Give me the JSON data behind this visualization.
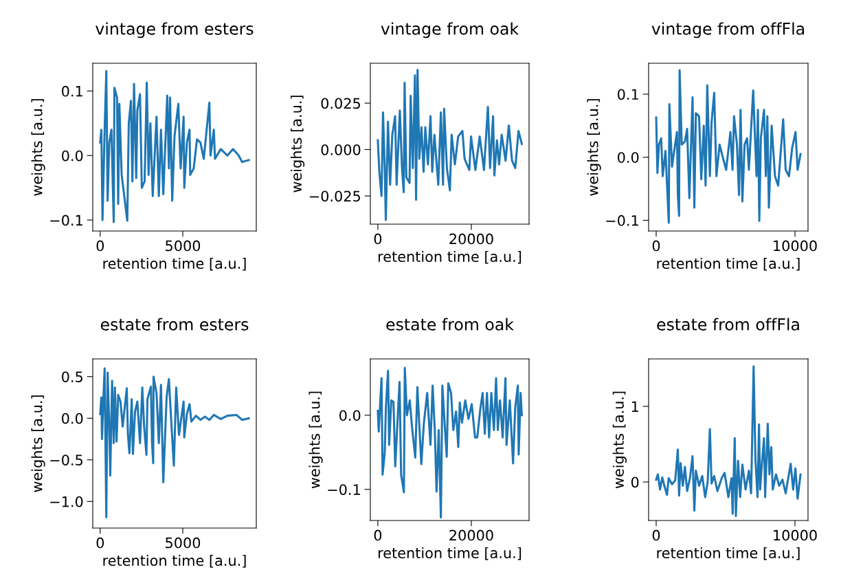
{
  "chart_data": [
    {
      "type": "line",
      "title": "vintage from esters",
      "xlabel": "retention time [a.u.]",
      "ylabel": "weights [a.u.]",
      "color": "#1f77b4",
      "xlim": [
        -450,
        9450
      ],
      "ylim": [
        -0.117,
        0.143
      ],
      "xticks": [
        0,
        5000
      ],
      "yticks": [
        {
          "value": -0.1,
          "label": "−0.1"
        },
        {
          "value": 0.0,
          "label": "0.0"
        },
        {
          "value": 0.1,
          "label": "0.1"
        }
      ],
      "x": [
        0,
        70,
        140,
        270,
        370,
        450,
        550,
        680,
        820,
        860,
        1020,
        1090,
        1160,
        1300,
        1640,
        1730,
        1860,
        1950,
        2050,
        2180,
        2250,
        2410,
        2520,
        2690,
        2820,
        2930,
        3040,
        3180,
        3410,
        3550,
        3680,
        3820,
        4060,
        4160,
        4230,
        4360,
        4500,
        4730,
        4870,
        5050,
        5090,
        5250,
        5410,
        5450,
        5660,
        5860,
        6070,
        6270,
        6610,
        6680,
        6880,
        6950,
        7300,
        7700,
        8040,
        8390,
        8590,
        9000
      ],
      "values": [
        0.02,
        0.04,
        -0.1,
        0.04,
        0.131,
        -0.07,
        0.02,
        0.04,
        -0.103,
        0.105,
        0.09,
        -0.075,
        0.08,
        -0.03,
        -0.101,
        0.05,
        0.085,
        -0.04,
        0.111,
        -0.035,
        0.07,
        0.095,
        -0.05,
        -0.04,
        0.113,
        -0.03,
        0.05,
        -0.063,
        0.06,
        -0.063,
        0.04,
        -0.06,
        0.093,
        -0.02,
        0.09,
        -0.07,
        0.03,
        0.08,
        -0.02,
        0.06,
        -0.05,
        0.02,
        0.04,
        -0.03,
        -0.02,
        0.025,
        0.02,
        -0.005,
        0.082,
        0.0,
        0.04,
        -0.005,
        0.01,
        0.0,
        0.01,
        0.0,
        -0.01,
        -0.007
      ]
    },
    {
      "type": "line",
      "title": "vintage from oak",
      "xlabel": "retention time [a.u.]",
      "ylabel": "weights [a.u.]",
      "color": "#1f77b4",
      "xlim": [
        -1600,
        32350
      ],
      "ylim": [
        -0.0402,
        0.0465
      ],
      "xticks": [
        0,
        20000
      ],
      "yticks": [
        {
          "value": -0.025,
          "label": "−0.025"
        },
        {
          "value": 0.0,
          "label": "0.000"
        },
        {
          "value": 0.025,
          "label": "0.025"
        }
      ],
      "x": [
        0,
        320,
        790,
        1110,
        1480,
        1710,
        2170,
        2630,
        3100,
        3700,
        4020,
        4710,
        5170,
        5540,
        5730,
        6100,
        6790,
        7020,
        7480,
        7940,
        8180,
        8500,
        8870,
        9330,
        9790,
        10160,
        10720,
        11270,
        11640,
        12100,
        12930,
        13490,
        13950,
        14180,
        14780,
        15420,
        15790,
        16480,
        17180,
        18100,
        18560,
        19580,
        19940,
        20870,
        21790,
        22710,
        23550,
        24010,
        24650,
        24930,
        25480,
        25940,
        26500,
        27330,
        28020,
        28710,
        29400,
        30090,
        30800
      ],
      "values": [
        0.005,
        -0.012,
        -0.025,
        0.02,
        -0.01,
        -0.038,
        0.015,
        -0.019,
        0.008,
        0.018,
        -0.019,
        0.021,
        -0.01,
        -0.023,
        0.036,
        -0.015,
        -0.018,
        0.029,
        -0.01,
        0.04,
        -0.027,
        0.043,
        -0.005,
        0.012,
        -0.012,
        0.012,
        -0.008,
        0.018,
        -0.012,
        0.008,
        -0.019,
        0.02,
        -0.019,
        0.022,
        -0.01,
        -0.022,
        0.008,
        -0.008,
        0.007,
        0.01,
        -0.005,
        -0.011,
        0.007,
        -0.011,
        0.007,
        -0.011,
        0.023,
        -0.01,
        0.018,
        -0.014,
        0.005,
        -0.008,
        0.008,
        -0.006,
        0.013,
        -0.006,
        -0.01,
        0.01,
        0.003
      ]
    },
    {
      "type": "line",
      "title": "vintage from offFla",
      "xlabel": "retention time [a.u.]",
      "ylabel": "weights [a.u.]",
      "color": "#1f77b4",
      "xlim": [
        -545,
        10940
      ],
      "ylim": [
        -0.117,
        0.149
      ],
      "xticks": [
        0,
        10000
      ],
      "yticks": [
        {
          "value": -0.1,
          "label": "−0.1"
        },
        {
          "value": 0.0,
          "label": "0.0"
        },
        {
          "value": 0.1,
          "label": "0.1"
        }
      ],
      "x": [
        0,
        90,
        200,
        360,
        470,
        670,
        910,
        950,
        1140,
        1300,
        1500,
        1560,
        1650,
        1690,
        1840,
        2070,
        2230,
        2390,
        2620,
        2750,
        2860,
        3090,
        3250,
        3430,
        3560,
        3680,
        3870,
        3990,
        4180,
        4340,
        4570,
        4800,
        5040,
        5350,
        5500,
        5610,
        5820,
        5970,
        6080,
        6210,
        6370,
        6550,
        6680,
        6990,
        7230,
        7330,
        7430,
        7540,
        7770,
        7900,
        8010,
        8120,
        8320,
        8560,
        8790,
        9150,
        9330,
        9570,
        9800,
        10040,
        10190,
        10400
      ],
      "values": [
        0.063,
        -0.025,
        0.02,
        0.03,
        -0.03,
        0.01,
        -0.104,
        0.084,
        -0.015,
        0.01,
        0.04,
        -0.06,
        -0.093,
        0.138,
        0.02,
        0.025,
        0.045,
        -0.065,
        0.095,
        -0.08,
        0.07,
        0.065,
        -0.035,
        0.05,
        -0.045,
        0.114,
        -0.03,
        0.055,
        0.102,
        -0.03,
        0.02,
        0.0,
        -0.02,
        0.04,
        -0.02,
        0.065,
        0.02,
        -0.06,
        0.075,
        -0.07,
        0.02,
        0.03,
        -0.02,
        0.106,
        -0.03,
        0.075,
        -0.101,
        0.03,
        0.075,
        -0.03,
        0.065,
        -0.08,
        0.05,
        -0.03,
        -0.045,
        0.06,
        -0.02,
        -0.03,
        0.015,
        0.04,
        -0.02,
        0.005
      ]
    },
    {
      "type": "line",
      "title": "estate from esters",
      "xlabel": "retention time [a.u.]",
      "ylabel": "weights [a.u.]",
      "color": "#1f77b4",
      "xlim": [
        -450,
        9450
      ],
      "ylim": [
        -1.32,
        0.713
      ],
      "xticks": [
        0,
        5000
      ],
      "yticks": [
        {
          "value": -1.0,
          "label": "−1.0"
        },
        {
          "value": -0.5,
          "label": "−0.5"
        },
        {
          "value": 0.0,
          "label": "0.0"
        },
        {
          "value": 0.5,
          "label": "0.5"
        }
      ],
      "x": [
        0,
        70,
        110,
        200,
        270,
        370,
        450,
        550,
        610,
        720,
        820,
        890,
        990,
        1090,
        1230,
        1360,
        1610,
        1680,
        1770,
        1910,
        1980,
        2110,
        2250,
        2410,
        2550,
        2660,
        2800,
        2860,
        3070,
        3140,
        3210,
        3230,
        3410,
        3550,
        3680,
        3820,
        4020,
        4160,
        4320,
        4460,
        4600,
        4770,
        5050,
        5090,
        5250,
        5410,
        5520,
        5800,
        6070,
        6340,
        6610,
        6880,
        7300,
        7700,
        8250,
        8590,
        9000
      ],
      "values": [
        0.05,
        0.25,
        -0.25,
        0.27,
        0.6,
        -1.19,
        0.55,
        -0.1,
        -0.69,
        0.45,
        -0.3,
        0.37,
        -0.28,
        0.28,
        0.2,
        -0.1,
        0.36,
        -0.2,
        -0.42,
        0.23,
        -0.43,
        0.08,
        0.2,
        -0.3,
        0.37,
        -0.1,
        -0.44,
        0.23,
        0.38,
        -0.3,
        -0.54,
        0.5,
        0.3,
        -0.3,
        0.4,
        -0.77,
        0.25,
        0.47,
        -0.1,
        -0.57,
        0.37,
        -0.2,
        0.2,
        -0.23,
        0.05,
        0.17,
        -0.04,
        0.03,
        -0.02,
        0.02,
        -0.02,
        0.04,
        -0.01,
        0.03,
        0.04,
        -0.02,
        0.0
      ]
    },
    {
      "type": "line",
      "title": "estate from oak",
      "xlabel": "retention time [a.u.]",
      "ylabel": "weights [a.u.]",
      "color": "#1f77b4",
      "xlim": [
        -1600,
        32350
      ],
      "ylim": [
        -0.142,
        0.076
      ],
      "xticks": [
        0,
        20000
      ],
      "yticks": [
        {
          "value": -0.1,
          "label": "−0.1"
        },
        {
          "value": 0.0,
          "label": "0.0"
        }
      ],
      "x": [
        0,
        190,
        790,
        1020,
        1490,
        1720,
        2190,
        2420,
        2880,
        3350,
        3720,
        4280,
        4650,
        4980,
        5580,
        5770,
        6230,
        6840,
        7300,
        8000,
        8460,
        8930,
        9300,
        9860,
        10560,
        11260,
        11720,
        12190,
        12560,
        13020,
        13490,
        13810,
        14280,
        14740,
        15070,
        15670,
        16140,
        16740,
        17210,
        17530,
        18000,
        18700,
        19390,
        20090,
        20790,
        21260,
        21950,
        22420,
        22880,
        23350,
        23810,
        24280,
        24840,
        25300,
        25670,
        26140,
        26700,
        27300,
        27530,
        28230,
        28930,
        29390,
        29950,
        30130,
        30550,
        30800
      ],
      "values": [
        0.006,
        -0.022,
        0.05,
        -0.08,
        -0.05,
        0.01,
        0.06,
        -0.04,
        0.02,
        0.018,
        -0.069,
        0.0,
        0.045,
        -0.08,
        -0.104,
        0.064,
        0.0,
        0.02,
        -0.015,
        -0.057,
        0.038,
        -0.02,
        -0.066,
        -0.01,
        0.03,
        -0.04,
        0.04,
        -0.02,
        -0.103,
        -0.02,
        -0.138,
        0.04,
        -0.01,
        -0.056,
        0.043,
        0.03,
        -0.02,
        0.005,
        -0.043,
        0.017,
        -0.01,
        0.02,
        -0.005,
        0.015,
        -0.03,
        -0.03,
        0.01,
        0.03,
        -0.025,
        0.03,
        -0.03,
        0.03,
        -0.02,
        0.05,
        -0.02,
        0.02,
        -0.03,
        0.05,
        -0.04,
        0.02,
        -0.065,
        0.01,
        0.04,
        -0.053,
        0.03,
        0.0
      ]
    },
    {
      "type": "line",
      "title": "estate from offFla",
      "xlabel": "retention time [a.u.]",
      "ylabel": "weights [a.u.]",
      "color": "#1f77b4",
      "xlim": [
        -545,
        10940
      ],
      "ylim": [
        -0.509,
        1.627
      ],
      "xticks": [
        0,
        10000
      ],
      "yticks": [
        0,
        1
      ],
      "x": [
        0,
        120,
        280,
        440,
        590,
        780,
        900,
        1140,
        1370,
        1560,
        1650,
        1760,
        1920,
        2070,
        2230,
        2430,
        2620,
        2750,
        2860,
        3090,
        3320,
        3530,
        3710,
        3870,
        3990,
        4180,
        4410,
        4720,
        4930,
        5200,
        5430,
        5510,
        5660,
        5740,
        5900,
        6050,
        6210,
        6440,
        6680,
        6840,
        7020,
        7150,
        7300,
        7410,
        7490,
        7620,
        7770,
        7850,
        8040,
        8160,
        8290,
        8400,
        8630,
        8860,
        9100,
        9330,
        9690,
        9870,
        10030,
        10190,
        10400
      ],
      "values": [
        0.03,
        0.1,
        -0.1,
        0.06,
        -0.05,
        -0.17,
        0.05,
        -0.03,
        0.02,
        0.43,
        -0.18,
        0.25,
        -0.05,
        0.2,
        -0.12,
        0.05,
        0.34,
        -0.38,
        0.15,
        -0.05,
        0.08,
        -0.2,
        0.0,
        0.7,
        -0.02,
        0.08,
        -0.12,
        0.05,
        0.12,
        -0.2,
        0.05,
        -0.42,
        0.58,
        -0.45,
        0.28,
        -0.2,
        0.23,
        -0.1,
        0.15,
        -0.15,
        1.53,
        0.3,
        -0.2,
        0.76,
        -0.1,
        0.25,
        0.58,
        -0.2,
        0.77,
        0.1,
        0.46,
        -0.1,
        0.1,
        -0.05,
        0.03,
        -0.15,
        0.24,
        -0.1,
        0.18,
        -0.22,
        0.1
      ]
    }
  ]
}
